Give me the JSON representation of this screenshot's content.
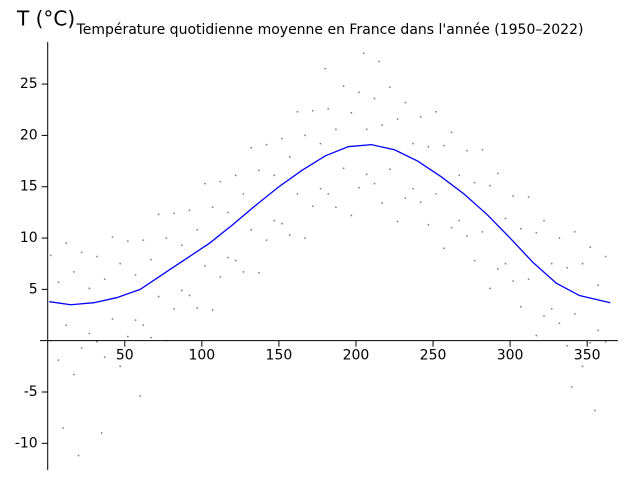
{
  "chart_data": {
    "type": "scatter",
    "title": "Température quotidienne moyenne en France dans l'année (1950–2022)",
    "ylabel": "T (°C)",
    "xlim": [
      -5,
      370
    ],
    "ylim": [
      -12.6,
      29.1
    ],
    "xticks": [
      50,
      100,
      150,
      200,
      250,
      300,
      350
    ],
    "yticks": [
      -10,
      -5,
      5,
      10,
      15,
      20,
      25
    ],
    "series": [
      {
        "type": "scatter",
        "color": "#808080",
        "x": [
          2,
          7,
          12,
          17,
          22,
          27,
          32,
          37,
          42,
          47,
          52,
          57,
          62,
          67,
          72,
          77,
          82,
          87,
          92,
          97,
          102,
          107,
          112,
          117,
          122,
          127,
          132,
          137,
          142,
          147,
          152,
          157,
          162,
          167,
          172,
          177,
          182,
          187,
          192,
          197,
          202,
          207,
          212,
          217,
          222,
          227,
          232,
          237,
          242,
          247,
          252,
          257,
          262,
          267,
          272,
          277,
          282,
          287,
          292,
          297,
          302,
          307,
          312,
          317,
          322,
          327,
          332,
          337,
          342,
          347,
          352,
          357,
          362,
          2,
          7,
          12,
          17,
          22,
          27,
          32,
          37,
          42,
          47,
          52,
          57,
          62,
          67,
          72,
          77,
          82,
          87,
          92,
          97,
          102,
          107,
          112,
          117,
          122,
          127,
          132,
          137,
          142,
          147,
          152,
          157,
          162,
          167,
          172,
          177,
          182,
          187,
          192,
          197,
          202,
          207,
          212,
          217,
          222,
          227,
          232,
          237,
          242,
          247,
          252,
          257,
          262,
          267,
          272,
          277,
          282,
          287,
          292,
          297,
          302,
          307,
          312,
          317,
          322,
          327,
          332,
          337,
          342,
          347,
          352,
          357,
          362,
          10,
          20,
          35,
          60,
          340,
          355,
          180,
          205,
          215
        ],
        "values": [
          8.3,
          5.7,
          9.5,
          6.7,
          8.6,
          5.1,
          8.2,
          6.0,
          10.1,
          7.5,
          9.7,
          6.4,
          9.8,
          7.9,
          12.3,
          10.0,
          12.4,
          9.3,
          12.7,
          10.8,
          15.3,
          13.0,
          15.5,
          12.5,
          16.1,
          14.3,
          18.8,
          16.6,
          19.1,
          16.1,
          19.7,
          17.9,
          22.3,
          20.0,
          22.4,
          19.2,
          22.6,
          20.6,
          24.8,
          22.2,
          24.2,
          20.6,
          23.6,
          21.0,
          24.7,
          21.6,
          23.2,
          19.2,
          21.8,
          18.9,
          22.3,
          19.0,
          20.3,
          16.1,
          18.5,
          15.4,
          18.6,
          15.1,
          16.3,
          11.9,
          14.1,
          10.9,
          14.0,
          10.5,
          11.7,
          7.5,
          10.0,
          7.1,
          10.6,
          7.5,
          9.1,
          5.4,
          8.2,
          0.0,
          -1.9,
          1.5,
          -3.3,
          -0.7,
          0.7,
          -0.1,
          -1.6,
          2.1,
          -2.5,
          0.4,
          2.0,
          1.5,
          0.3,
          4.3,
          0.0,
          3.1,
          4.9,
          4.4,
          3.2,
          7.3,
          3.0,
          6.2,
          8.1,
          7.8,
          6.7,
          10.8,
          6.6,
          9.8,
          11.7,
          11.4,
          10.3,
          14.3,
          10.0,
          13.1,
          14.8,
          14.3,
          13.0,
          16.8,
          12.2,
          14.9,
          16.2,
          15.3,
          13.4,
          16.7,
          11.6,
          13.9,
          14.8,
          13.5,
          11.3,
          14.3,
          9.0,
          11.0,
          11.7,
          10.2,
          7.8,
          10.6,
          5.1,
          7.0,
          7.5,
          5.8,
          3.3,
          6.0,
          0.5,
          2.4,
          3.1,
          1.7,
          -0.5,
          2.6,
          -2.5,
          -0.2,
          1.0,
          -0.1,
          -8.5,
          -11.2,
          -9.0,
          -5.4,
          -4.5,
          -6.8,
          26.5,
          28.0,
          27.2
        ]
      },
      {
        "type": "line",
        "color": "#0000ff",
        "x": [
          1,
          15,
          30,
          45,
          60,
          75,
          90,
          105,
          120,
          135,
          150,
          165,
          180,
          195,
          210,
          225,
          240,
          255,
          270,
          285,
          300,
          315,
          330,
          345,
          365
        ],
        "values": [
          3.8,
          3.5,
          3.7,
          4.2,
          5.0,
          6.5,
          8.0,
          9.5,
          11.3,
          13.2,
          15.0,
          16.6,
          18.0,
          18.9,
          19.1,
          18.6,
          17.5,
          16.0,
          14.3,
          12.3,
          10.0,
          7.6,
          5.6,
          4.4,
          3.7
        ]
      }
    ]
  }
}
